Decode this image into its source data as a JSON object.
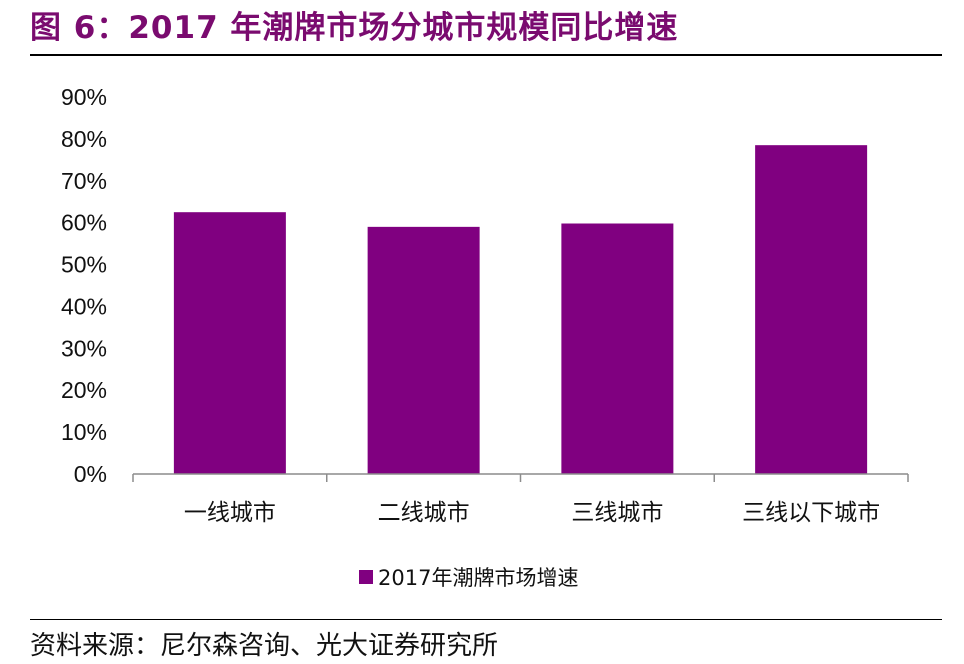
{
  "figure": {
    "title": "图 6：2017 年潮牌市场分城市规模同比增速",
    "source": "资料来源：尼尔森咨询、光大证券研究所"
  },
  "colors": {
    "bar": "#800080",
    "title": "#7a0b6f",
    "axis": "#8c8c8c"
  },
  "chart_data": {
    "type": "bar",
    "title": "",
    "xlabel": "",
    "ylabel": "",
    "categories": [
      "一线城市",
      "二线城市",
      "三线城市",
      "三线以下城市"
    ],
    "series": [
      {
        "name": "2017年潮牌市场增速",
        "values": [
          62.5,
          59.0,
          59.8,
          78.5
        ]
      }
    ],
    "ylim": [
      0,
      90
    ],
    "yticks": [
      0,
      10,
      20,
      30,
      40,
      50,
      60,
      70,
      80,
      90
    ],
    "ytick_labels": [
      "0%",
      "10%",
      "20%",
      "30%",
      "40%",
      "50%",
      "60%",
      "70%",
      "80%",
      "90%"
    ],
    "grid": false,
    "legend": "bottom"
  }
}
